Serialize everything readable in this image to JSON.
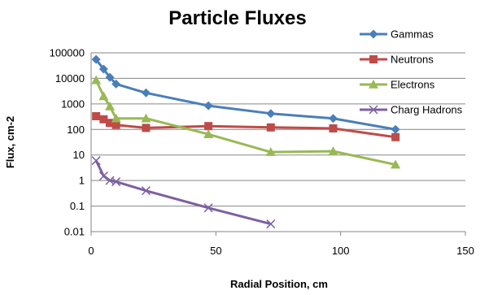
{
  "chart_data": {
    "type": "line",
    "title": "Particle Fluxes",
    "xlabel": "Radial Position, cm",
    "ylabel": "Flux, cm-2",
    "xlim": [
      0,
      150
    ],
    "ylim": [
      0.01,
      100000
    ],
    "yscale": "log",
    "x_ticks": [
      0,
      50,
      100,
      150
    ],
    "y_ticks": [
      "0.01",
      "0.1",
      "1",
      "10",
      "100",
      "1000",
      "10000",
      "100000"
    ],
    "y_tick_values": [
      0.01,
      0.1,
      1,
      10,
      100,
      1000,
      10000,
      100000
    ],
    "grid": "horizontal",
    "legend": "right",
    "series": [
      {
        "name": "Gammas",
        "color": "#4a7ebb",
        "marker": "diamond",
        "x": [
          2,
          5,
          7.5,
          10,
          22,
          47,
          72,
          97,
          122
        ],
        "y": [
          55000,
          23000,
          11000,
          6000,
          2700,
          850,
          420,
          270,
          100
        ]
      },
      {
        "name": "Neutrons",
        "color": "#be4b48",
        "marker": "square",
        "x": [
          2,
          5,
          7.5,
          10,
          22,
          47,
          72,
          97,
          122
        ],
        "y": [
          330,
          250,
          180,
          150,
          115,
          135,
          120,
          110,
          50
        ]
      },
      {
        "name": "Electrons",
        "color": "#98b954",
        "marker": "triangle",
        "x": [
          2,
          5,
          7.5,
          10,
          22,
          47,
          72,
          97,
          122
        ],
        "y": [
          8500,
          2000,
          800,
          270,
          270,
          65,
          13,
          14,
          4.2
        ]
      },
      {
        "name": "Charg Hadrons",
        "color": "#7d60a0",
        "marker": "x",
        "x": [
          2,
          5,
          7.5,
          10,
          22,
          47,
          72
        ],
        "y": [
          6,
          1.5,
          1,
          0.9,
          0.4,
          0.085,
          0.02
        ]
      }
    ]
  }
}
